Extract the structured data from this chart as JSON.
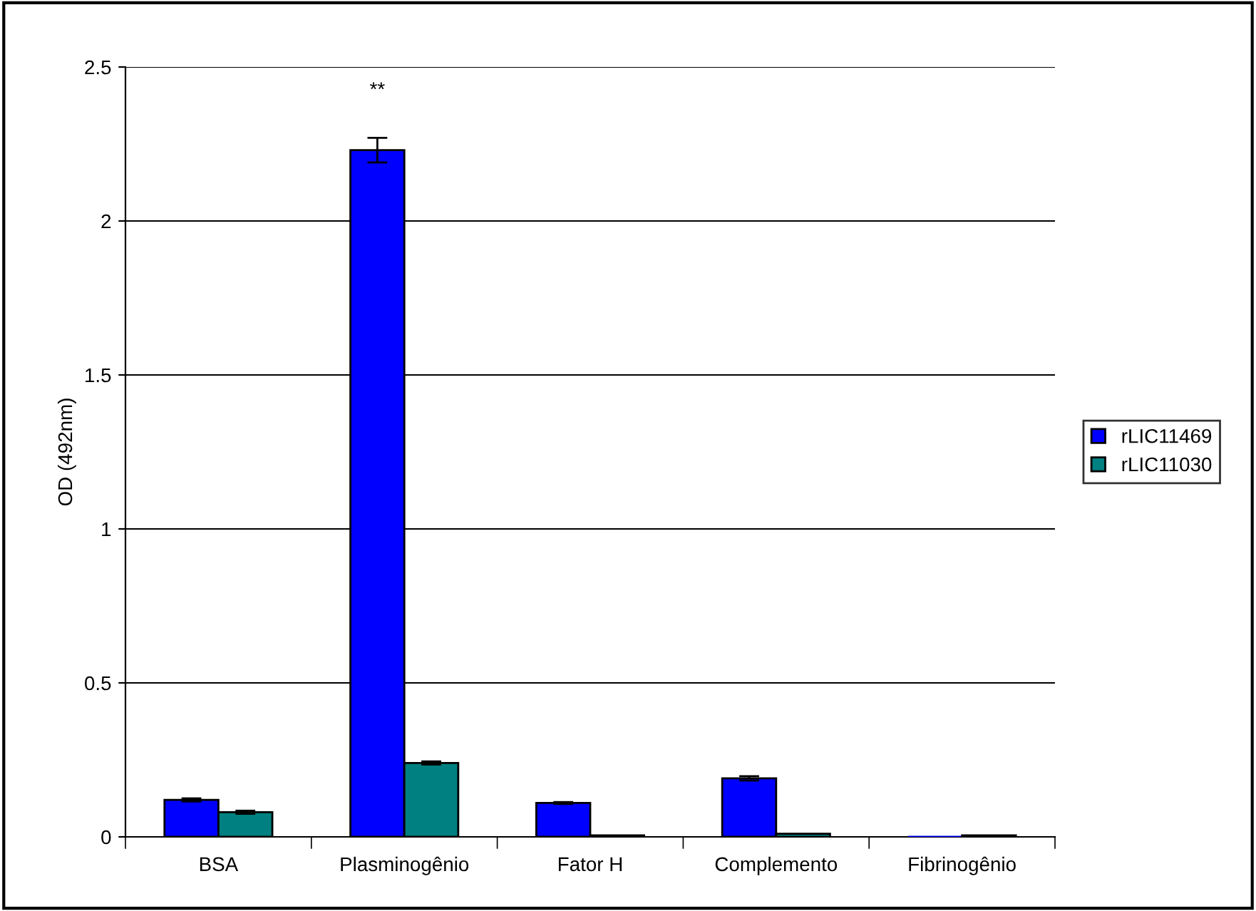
{
  "chart_data": {
    "type": "bar",
    "ylabel": "OD (492nm)",
    "categories": [
      "BSA",
      "Plasminogênio",
      "Fator H",
      "Complemento",
      "Fibrinogênio"
    ],
    "series": [
      {
        "name": "rLIC11469",
        "color": "#0000ff",
        "values": [
          0.12,
          2.23,
          0.11,
          0.19,
          0.0
        ],
        "errors": [
          0.005,
          0.04,
          0.003,
          0.007,
          null
        ]
      },
      {
        "name": "rLIC11030",
        "color": "#008080",
        "values": [
          0.08,
          0.24,
          0.005,
          0.01,
          0.005
        ],
        "errors": [
          0.005,
          0.005,
          null,
          null,
          null
        ]
      }
    ],
    "ylim": [
      0,
      2.5
    ],
    "yticks": [
      0,
      0.5,
      1,
      1.5,
      2,
      2.5
    ],
    "grid": "y",
    "legend": "right",
    "annotations": [
      "**"
    ]
  }
}
